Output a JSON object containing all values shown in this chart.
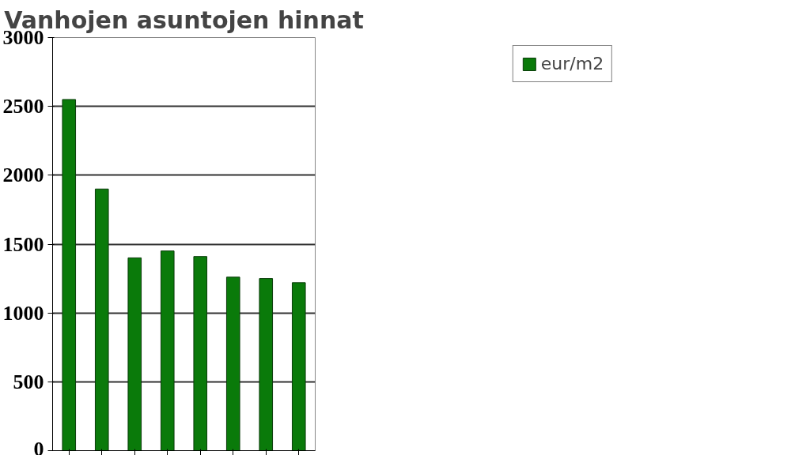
{
  "chart_data": {
    "type": "bar",
    "title": "Vanhojen asuntojen hinnat",
    "categories": [
      null,
      null,
      null,
      null,
      null,
      null,
      null,
      null
    ],
    "series": [
      {
        "name": "eur/m2",
        "color": "#0a7a0a",
        "values": [
          2550,
          1900,
          1400,
          1450,
          1410,
          1260,
          1250,
          1220
        ]
      }
    ],
    "ylim": [
      0,
      3000
    ],
    "yticks": [
      0,
      500,
      1000,
      1500,
      2000,
      2500,
      3000
    ],
    "grid": "y",
    "legend": "top right"
  }
}
